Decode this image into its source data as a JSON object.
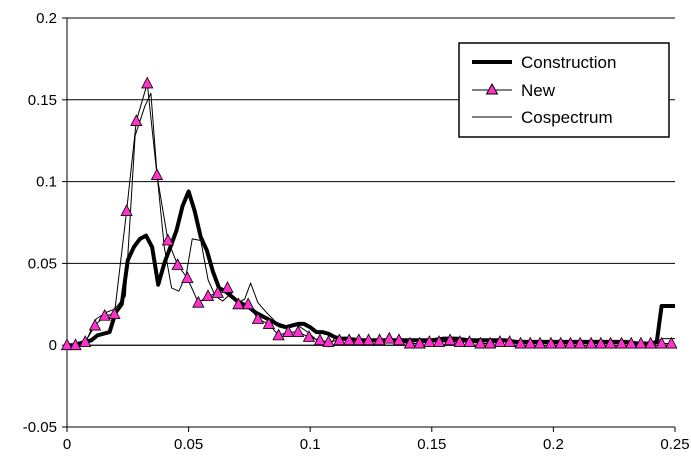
{
  "chart_data": {
    "type": "line",
    "title": "",
    "xlabel": "",
    "ylabel": "",
    "xlim": [
      0,
      0.25
    ],
    "ylim": [
      -0.05,
      0.2
    ],
    "x_ticks": [
      "0",
      "0.05",
      "0.1",
      "0.15",
      "0.2",
      "0.25"
    ],
    "y_ticks": [
      "-0.05",
      "0",
      "0.05",
      "0.1",
      "0.15",
      "0.2"
    ],
    "grid": "horizontal",
    "legend_position": "top-right",
    "series": [
      {
        "name": "Construction",
        "style": "thick-line",
        "color": "#000000",
        "points": [
          [
            0.0,
            0.0
          ],
          [
            0.0025,
            0.0
          ],
          [
            0.005,
            0.001
          ],
          [
            0.0075,
            0.002
          ],
          [
            0.01,
            0.003
          ],
          [
            0.0125,
            0.006
          ],
          [
            0.015,
            0.007
          ],
          [
            0.0175,
            0.008
          ],
          [
            0.02,
            0.02
          ],
          [
            0.0225,
            0.025
          ],
          [
            0.025,
            0.052
          ],
          [
            0.0275,
            0.06
          ],
          [
            0.03,
            0.065
          ],
          [
            0.0325,
            0.067
          ],
          [
            0.035,
            0.06
          ],
          [
            0.0375,
            0.037
          ],
          [
            0.04,
            0.05
          ],
          [
            0.0425,
            0.06
          ],
          [
            0.045,
            0.07
          ],
          [
            0.0475,
            0.085
          ],
          [
            0.05,
            0.094
          ],
          [
            0.0525,
            0.082
          ],
          [
            0.055,
            0.066
          ],
          [
            0.0575,
            0.058
          ],
          [
            0.06,
            0.045
          ],
          [
            0.0625,
            0.035
          ],
          [
            0.065,
            0.033
          ],
          [
            0.0675,
            0.03
          ],
          [
            0.07,
            0.027
          ],
          [
            0.0725,
            0.025
          ],
          [
            0.075,
            0.023
          ],
          [
            0.0775,
            0.02
          ],
          [
            0.08,
            0.018
          ],
          [
            0.0825,
            0.016
          ],
          [
            0.085,
            0.014
          ],
          [
            0.0875,
            0.012
          ],
          [
            0.09,
            0.011
          ],
          [
            0.0925,
            0.012
          ],
          [
            0.095,
            0.013
          ],
          [
            0.0975,
            0.013
          ],
          [
            0.1,
            0.011
          ],
          [
            0.1025,
            0.008
          ],
          [
            0.105,
            0.008
          ],
          [
            0.1075,
            0.007
          ],
          [
            0.11,
            0.005
          ],
          [
            0.1125,
            0.004
          ],
          [
            0.115,
            0.004
          ],
          [
            0.12,
            0.003
          ],
          [
            0.125,
            0.003
          ],
          [
            0.13,
            0.003
          ],
          [
            0.135,
            0.003
          ],
          [
            0.14,
            0.003
          ],
          [
            0.145,
            0.003
          ],
          [
            0.15,
            0.003
          ],
          [
            0.155,
            0.004
          ],
          [
            0.16,
            0.004
          ],
          [
            0.165,
            0.003
          ],
          [
            0.17,
            0.003
          ],
          [
            0.175,
            0.003
          ],
          [
            0.18,
            0.003
          ],
          [
            0.185,
            0.002
          ],
          [
            0.19,
            0.002
          ],
          [
            0.195,
            0.002
          ],
          [
            0.2,
            0.002
          ],
          [
            0.205,
            0.002
          ],
          [
            0.21,
            0.002
          ],
          [
            0.215,
            0.002
          ],
          [
            0.22,
            0.002
          ],
          [
            0.225,
            0.002
          ],
          [
            0.23,
            0.002
          ],
          [
            0.235,
            0.001
          ],
          [
            0.2375,
            0.001
          ],
          [
            0.24,
            0.001
          ],
          [
            0.2425,
            0.002
          ],
          [
            0.2445,
            0.024
          ],
          [
            0.2475,
            0.024
          ],
          [
            0.25,
            0.024
          ]
        ]
      },
      {
        "name": "New",
        "style": "line-triangle-markers",
        "color": "#000000",
        "marker_color": "#ff33cc",
        "points": [
          [
            0.0,
            0.0
          ],
          [
            0.0035,
            0.0
          ],
          [
            0.0075,
            0.002
          ],
          [
            0.0115,
            0.012
          ],
          [
            0.0155,
            0.018
          ],
          [
            0.0195,
            0.019
          ],
          [
            0.0245,
            0.082
          ],
          [
            0.0285,
            0.137
          ],
          [
            0.033,
            0.16
          ],
          [
            0.037,
            0.104
          ],
          [
            0.0415,
            0.064
          ],
          [
            0.0455,
            0.049
          ],
          [
            0.0495,
            0.041
          ],
          [
            0.054,
            0.026
          ],
          [
            0.058,
            0.03
          ],
          [
            0.062,
            0.032
          ],
          [
            0.066,
            0.035
          ],
          [
            0.0705,
            0.025
          ],
          [
            0.0745,
            0.025
          ],
          [
            0.0785,
            0.016
          ],
          [
            0.083,
            0.013
          ],
          [
            0.087,
            0.006
          ],
          [
            0.091,
            0.008
          ],
          [
            0.095,
            0.008
          ],
          [
            0.0995,
            0.005
          ],
          [
            0.104,
            0.003
          ],
          [
            0.1075,
            0.002
          ],
          [
            0.112,
            0.003
          ],
          [
            0.116,
            0.003
          ],
          [
            0.12,
            0.003
          ],
          [
            0.124,
            0.003
          ],
          [
            0.1285,
            0.003
          ],
          [
            0.1325,
            0.004
          ],
          [
            0.1365,
            0.003
          ],
          [
            0.141,
            0.001
          ],
          [
            0.145,
            0.001
          ],
          [
            0.149,
            0.002
          ],
          [
            0.153,
            0.002
          ],
          [
            0.1575,
            0.003
          ],
          [
            0.1615,
            0.002
          ],
          [
            0.1655,
            0.002
          ],
          [
            0.17,
            0.001
          ],
          [
            0.174,
            0.001
          ],
          [
            0.178,
            0.002
          ],
          [
            0.182,
            0.002
          ],
          [
            0.1865,
            0.001
          ],
          [
            0.1905,
            0.001
          ],
          [
            0.1945,
            0.001
          ],
          [
            0.199,
            0.001
          ],
          [
            0.203,
            0.001
          ],
          [
            0.207,
            0.001
          ],
          [
            0.211,
            0.001
          ],
          [
            0.2155,
            0.001
          ],
          [
            0.2195,
            0.001
          ],
          [
            0.2235,
            0.001
          ],
          [
            0.228,
            0.001
          ],
          [
            0.232,
            0.001
          ],
          [
            0.236,
            0.001
          ],
          [
            0.24,
            0.001
          ],
          [
            0.2445,
            0.001
          ],
          [
            0.2485,
            0.001
          ]
        ]
      },
      {
        "name": "Cospectrum",
        "style": "thin-line",
        "color": "#000000",
        "points": [
          [
            0.0,
            0.0
          ],
          [
            0.004,
            0.001
          ],
          [
            0.008,
            0.003
          ],
          [
            0.012,
            0.016
          ],
          [
            0.016,
            0.02
          ],
          [
            0.0195,
            0.022
          ],
          [
            0.024,
            0.03
          ],
          [
            0.028,
            0.128
          ],
          [
            0.032,
            0.146
          ],
          [
            0.0345,
            0.154
          ],
          [
            0.037,
            0.105
          ],
          [
            0.04,
            0.06
          ],
          [
            0.043,
            0.035
          ],
          [
            0.046,
            0.033
          ],
          [
            0.049,
            0.043
          ],
          [
            0.0515,
            0.065
          ],
          [
            0.055,
            0.064
          ],
          [
            0.058,
            0.04
          ],
          [
            0.061,
            0.03
          ],
          [
            0.064,
            0.027
          ],
          [
            0.067,
            0.031
          ],
          [
            0.07,
            0.026
          ],
          [
            0.073,
            0.028
          ],
          [
            0.0755,
            0.038
          ],
          [
            0.0785,
            0.026
          ],
          [
            0.082,
            0.02
          ],
          [
            0.086,
            0.014
          ],
          [
            0.09,
            0.012
          ],
          [
            0.095,
            0.012
          ],
          [
            0.099,
            0.008
          ],
          [
            0.1035,
            0.002
          ],
          [
            0.106,
            0.002
          ],
          [
            0.1075,
            -0.001
          ],
          [
            0.11,
            0.004
          ],
          [
            0.115,
            0.003
          ],
          [
            0.12,
            0.003
          ],
          [
            0.125,
            0.003
          ],
          [
            0.13,
            0.003
          ],
          [
            0.135,
            0.003
          ],
          [
            0.14,
            0.001
          ],
          [
            0.145,
            0.003
          ],
          [
            0.15,
            0.003
          ],
          [
            0.155,
            0.002
          ],
          [
            0.16,
            0.002
          ],
          [
            0.165,
            0.002
          ],
          [
            0.17,
            0.002
          ],
          [
            0.175,
            0.002
          ],
          [
            0.18,
            0.002
          ],
          [
            0.185,
            0.001
          ],
          [
            0.19,
            0.001
          ],
          [
            0.195,
            0.001
          ],
          [
            0.2,
            0.001
          ],
          [
            0.205,
            0.001
          ],
          [
            0.21,
            0.001
          ],
          [
            0.215,
            0.001
          ],
          [
            0.22,
            0.001
          ],
          [
            0.225,
            0.001
          ],
          [
            0.23,
            0.001
          ],
          [
            0.235,
            0.001
          ],
          [
            0.24,
            0.001
          ],
          [
            0.245,
            0.004
          ],
          [
            0.25,
            0.004
          ]
        ]
      }
    ]
  }
}
